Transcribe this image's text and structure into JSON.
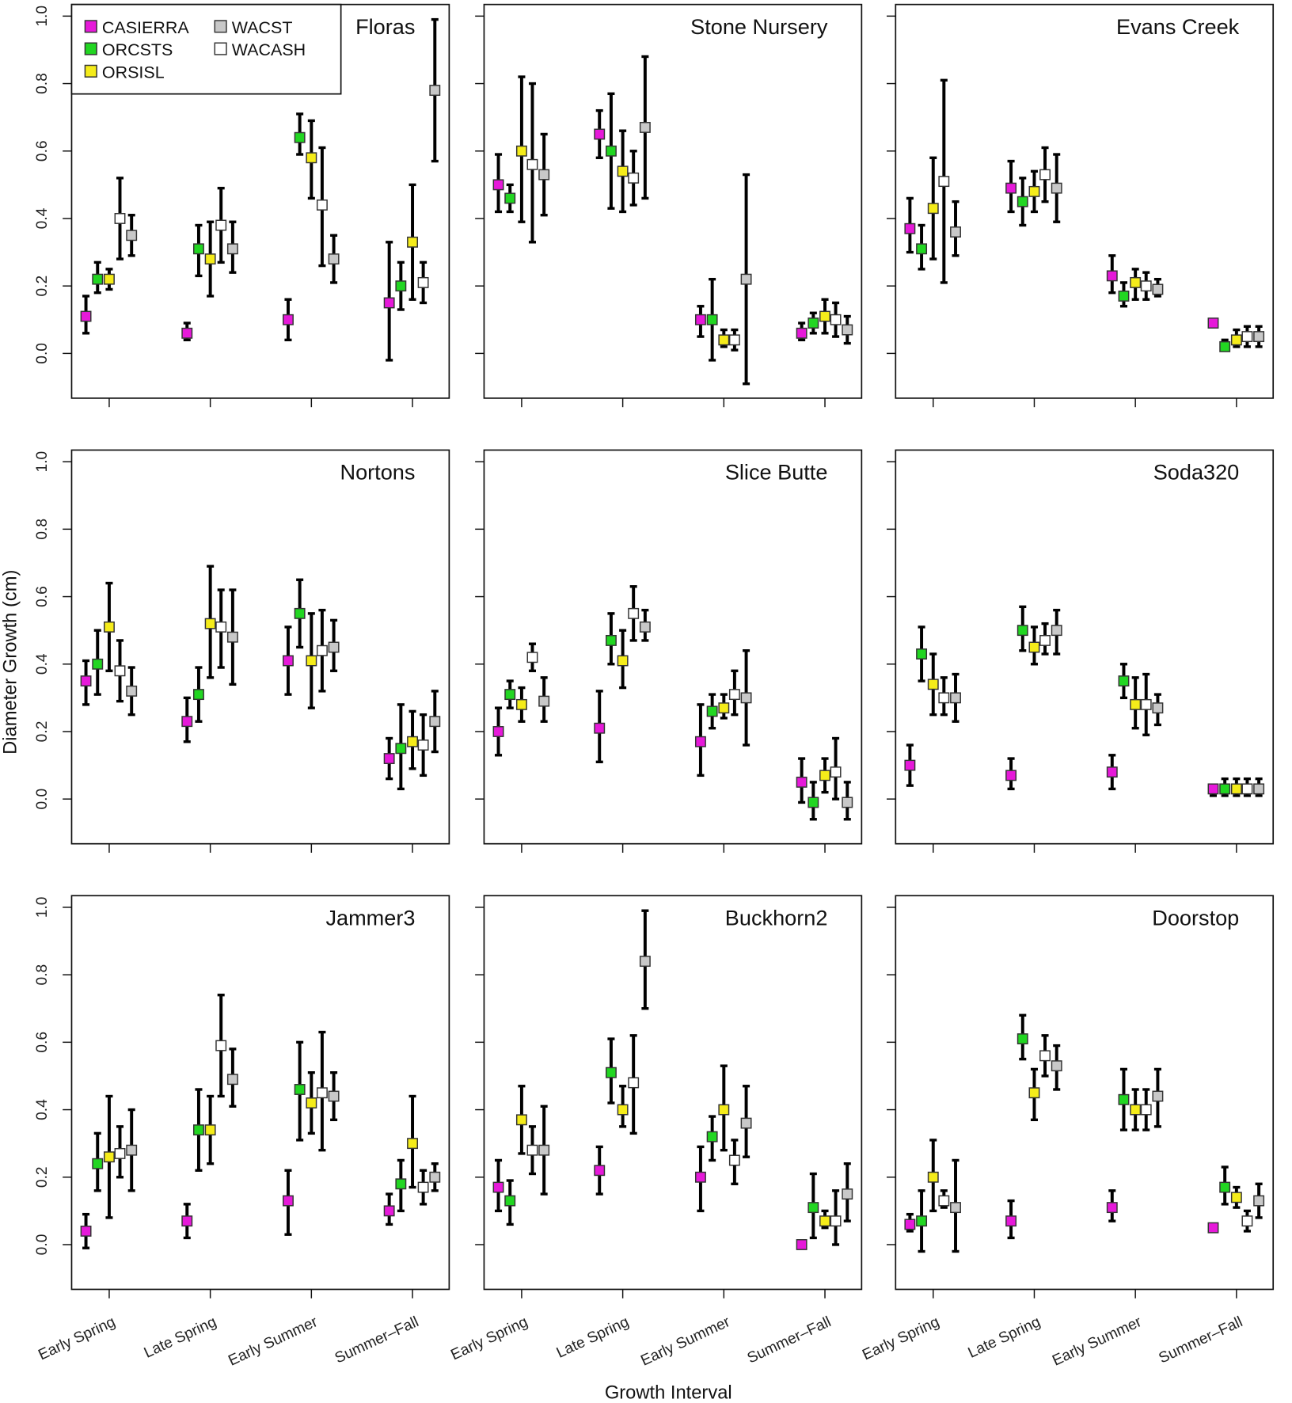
{
  "chart_data": {
    "type": "scatter",
    "subtype": "point-with-errorbars, 3x3 facets",
    "xlabel": "Growth Interval",
    "ylabel": "Diameter Growth (cm)",
    "ylim": [
      -0.1,
      1.05
    ],
    "yticks": [
      "0.0",
      "0.2",
      "0.4",
      "0.6",
      "0.8",
      "1.0"
    ],
    "ytick_values": [
      0,
      0.2,
      0.4,
      0.6,
      0.8,
      1.0
    ],
    "categories": [
      "Early Spring",
      "Late Spring",
      "Early Summer",
      "Summer–Fall"
    ],
    "legend": {
      "placement": "top-left of first panel",
      "entries": [
        {
          "name": "CASIERRA",
          "color": "#e619d9"
        },
        {
          "name": "ORCSTS",
          "color": "#22d622"
        },
        {
          "name": "ORSISL",
          "color": "#f5ec1a"
        },
        {
          "name": "WACASH",
          "color": "#ffffff"
        },
        {
          "name": "WACST",
          "color": "#c8c8c8"
        }
      ],
      "display_order": [
        "CASIERRA",
        "WACST",
        "ORCSTS",
        "WACASH",
        "ORSISL"
      ]
    },
    "series_order": [
      "CASIERRA",
      "ORCSTS",
      "ORSISL",
      "WACASH",
      "WACST"
    ],
    "value_format": "[mean, lower, upper] per category",
    "panels": [
      {
        "title": "Floras",
        "series": [
          [
            [
              0.11,
              0.06,
              0.17
            ],
            [
              0.06,
              0.04,
              0.09
            ],
            [
              0.1,
              0.04,
              0.16
            ],
            [
              0.15,
              -0.02,
              0.33
            ]
          ],
          [
            [
              0.22,
              0.18,
              0.27
            ],
            [
              0.31,
              0.23,
              0.38
            ],
            [
              0.64,
              0.59,
              0.71
            ],
            [
              0.2,
              0.13,
              0.27
            ]
          ],
          [
            [
              0.22,
              0.19,
              0.25
            ],
            [
              0.28,
              0.17,
              0.39
            ],
            [
              0.58,
              0.46,
              0.69
            ],
            [
              0.33,
              0.16,
              0.5
            ]
          ],
          [
            [
              0.4,
              0.28,
              0.52
            ],
            [
              0.38,
              0.27,
              0.49
            ],
            [
              0.44,
              0.26,
              0.61
            ],
            [
              0.21,
              0.15,
              0.27
            ]
          ],
          [
            [
              0.35,
              0.29,
              0.41
            ],
            [
              0.31,
              0.24,
              0.39
            ],
            [
              0.28,
              0.21,
              0.35
            ],
            [
              0.78,
              0.57,
              0.99
            ]
          ]
        ]
      },
      {
        "title": "Stone Nursery",
        "series": [
          [
            [
              0.5,
              0.42,
              0.59
            ],
            [
              0.65,
              0.58,
              0.72
            ],
            [
              0.1,
              0.05,
              0.14
            ],
            [
              0.06,
              0.04,
              0.09
            ]
          ],
          [
            [
              0.46,
              0.42,
              0.5
            ],
            [
              0.6,
              0.43,
              0.77
            ],
            [
              0.1,
              -0.02,
              0.22
            ],
            [
              0.09,
              0.06,
              0.12
            ]
          ],
          [
            [
              0.6,
              0.39,
              0.82
            ],
            [
              0.54,
              0.42,
              0.66
            ],
            [
              0.04,
              0.02,
              0.07
            ],
            [
              0.11,
              0.06,
              0.16
            ]
          ],
          [
            [
              0.56,
              0.33,
              0.8
            ],
            [
              0.52,
              0.44,
              0.6
            ],
            [
              0.04,
              0.01,
              0.07
            ],
            [
              0.1,
              0.05,
              0.15
            ]
          ],
          [
            [
              0.53,
              0.41,
              0.65
            ],
            [
              0.67,
              0.46,
              0.88
            ],
            [
              0.22,
              -0.09,
              0.53
            ],
            [
              0.07,
              0.03,
              0.11
            ]
          ]
        ]
      },
      {
        "title": "Evans Creek",
        "series": [
          [
            [
              0.37,
              0.3,
              0.46
            ],
            [
              0.49,
              0.42,
              0.57
            ],
            [
              0.23,
              0.18,
              0.29
            ],
            [
              0.09,
              0.08,
              0.1
            ]
          ],
          [
            [
              0.31,
              0.25,
              0.38
            ],
            [
              0.45,
              0.38,
              0.52
            ],
            [
              0.17,
              0.14,
              0.21
            ],
            [
              0.02,
              0.01,
              0.04
            ]
          ],
          [
            [
              0.43,
              0.28,
              0.58
            ],
            [
              0.48,
              0.42,
              0.54
            ],
            [
              0.21,
              0.16,
              0.25
            ],
            [
              0.04,
              0.02,
              0.07
            ]
          ],
          [
            [
              0.51,
              0.21,
              0.81
            ],
            [
              0.53,
              0.45,
              0.61
            ],
            [
              0.2,
              0.16,
              0.24
            ],
            [
              0.05,
              0.02,
              0.08
            ]
          ],
          [
            [
              0.36,
              0.29,
              0.45
            ],
            [
              0.49,
              0.39,
              0.59
            ],
            [
              0.19,
              0.17,
              0.22
            ],
            [
              0.05,
              0.02,
              0.08
            ]
          ]
        ]
      },
      {
        "title": "Nortons",
        "series": [
          [
            [
              0.35,
              0.28,
              0.41
            ],
            [
              0.23,
              0.17,
              0.3
            ],
            [
              0.41,
              0.31,
              0.51
            ],
            [
              0.12,
              0.06,
              0.18
            ]
          ],
          [
            [
              0.4,
              0.31,
              0.5
            ],
            [
              0.31,
              0.23,
              0.39
            ],
            [
              0.55,
              0.45,
              0.65
            ],
            [
              0.15,
              0.03,
              0.28
            ]
          ],
          [
            [
              0.51,
              0.38,
              0.64
            ],
            [
              0.52,
              0.36,
              0.69
            ],
            [
              0.41,
              0.27,
              0.55
            ],
            [
              0.17,
              0.09,
              0.26
            ]
          ],
          [
            [
              0.38,
              0.29,
              0.47
            ],
            [
              0.51,
              0.39,
              0.62
            ],
            [
              0.44,
              0.32,
              0.56
            ],
            [
              0.16,
              0.07,
              0.25
            ]
          ],
          [
            [
              0.32,
              0.25,
              0.39
            ],
            [
              0.48,
              0.34,
              0.62
            ],
            [
              0.45,
              0.38,
              0.53
            ],
            [
              0.23,
              0.14,
              0.32
            ]
          ]
        ]
      },
      {
        "title": "Slice Butte",
        "series": [
          [
            [
              0.2,
              0.13,
              0.27
            ],
            [
              0.21,
              0.11,
              0.32
            ],
            [
              0.17,
              0.07,
              0.28
            ],
            [
              0.05,
              -0.01,
              0.12
            ]
          ],
          [
            [
              0.31,
              0.27,
              0.35
            ],
            [
              0.47,
              0.4,
              0.55
            ],
            [
              0.26,
              0.21,
              0.31
            ],
            [
              -0.01,
              -0.06,
              0.05
            ]
          ],
          [
            [
              0.28,
              0.23,
              0.33
            ],
            [
              0.41,
              0.33,
              0.5
            ],
            [
              0.27,
              0.24,
              0.31
            ],
            [
              0.07,
              0.02,
              0.12
            ]
          ],
          [
            [
              0.42,
              0.38,
              0.46
            ],
            [
              0.55,
              0.47,
              0.63
            ],
            [
              0.31,
              0.25,
              0.38
            ],
            [
              0.08,
              0.0,
              0.18
            ]
          ],
          [
            [
              0.29,
              0.23,
              0.36
            ],
            [
              0.51,
              0.47,
              0.56
            ],
            [
              0.3,
              0.16,
              0.44
            ],
            [
              -0.01,
              -0.06,
              0.05
            ]
          ]
        ]
      },
      {
        "title": "Soda320",
        "series": [
          [
            [
              0.1,
              0.04,
              0.16
            ],
            [
              0.07,
              0.03,
              0.12
            ],
            [
              0.08,
              0.03,
              0.13
            ],
            [
              0.03,
              0.01,
              0.04
            ]
          ],
          [
            [
              0.43,
              0.35,
              0.51
            ],
            [
              0.5,
              0.44,
              0.57
            ],
            [
              0.35,
              0.3,
              0.4
            ],
            [
              0.03,
              0.01,
              0.06
            ]
          ],
          [
            [
              0.34,
              0.25,
              0.43
            ],
            [
              0.45,
              0.4,
              0.51
            ],
            [
              0.28,
              0.21,
              0.36
            ],
            [
              0.03,
              0.01,
              0.06
            ]
          ],
          [
            [
              0.3,
              0.25,
              0.36
            ],
            [
              0.47,
              0.43,
              0.52
            ],
            [
              0.28,
              0.19,
              0.37
            ],
            [
              0.03,
              0.01,
              0.06
            ]
          ],
          [
            [
              0.3,
              0.23,
              0.37
            ],
            [
              0.5,
              0.43,
              0.56
            ],
            [
              0.27,
              0.22,
              0.31
            ],
            [
              0.03,
              0.01,
              0.06
            ]
          ]
        ]
      },
      {
        "title": "Jammer3",
        "series": [
          [
            [
              0.04,
              -0.01,
              0.09
            ],
            [
              0.07,
              0.02,
              0.12
            ],
            [
              0.13,
              0.03,
              0.22
            ],
            [
              0.1,
              0.06,
              0.15
            ]
          ],
          [
            [
              0.24,
              0.16,
              0.33
            ],
            [
              0.34,
              0.22,
              0.46
            ],
            [
              0.46,
              0.31,
              0.6
            ],
            [
              0.18,
              0.1,
              0.25
            ]
          ],
          [
            [
              0.26,
              0.08,
              0.44
            ],
            [
              0.34,
              0.24,
              0.44
            ],
            [
              0.42,
              0.33,
              0.51
            ],
            [
              0.3,
              0.17,
              0.44
            ]
          ],
          [
            [
              0.27,
              0.2,
              0.35
            ],
            [
              0.59,
              0.44,
              0.74
            ],
            [
              0.45,
              0.28,
              0.63
            ],
            [
              0.17,
              0.12,
              0.22
            ]
          ],
          [
            [
              0.28,
              0.16,
              0.4
            ],
            [
              0.49,
              0.41,
              0.58
            ],
            [
              0.44,
              0.37,
              0.51
            ],
            [
              0.2,
              0.16,
              0.24
            ]
          ]
        ]
      },
      {
        "title": "Buckhorn2",
        "series": [
          [
            [
              0.17,
              0.1,
              0.25
            ],
            [
              0.22,
              0.15,
              0.29
            ],
            [
              0.2,
              0.1,
              0.29
            ],
            [
              0.0,
              0.0,
              0.01
            ]
          ],
          [
            [
              0.13,
              0.06,
              0.19
            ],
            [
              0.51,
              0.42,
              0.61
            ],
            [
              0.32,
              0.25,
              0.38
            ],
            [
              0.11,
              0.02,
              0.21
            ]
          ],
          [
            [
              0.37,
              0.27,
              0.47
            ],
            [
              0.4,
              0.35,
              0.47
            ],
            [
              0.4,
              0.28,
              0.53
            ],
            [
              0.07,
              0.05,
              0.1
            ]
          ],
          [
            [
              0.28,
              0.21,
              0.35
            ],
            [
              0.48,
              0.33,
              0.62
            ],
            [
              0.25,
              0.18,
              0.31
            ],
            [
              0.07,
              0.0,
              0.16
            ]
          ],
          [
            [
              0.28,
              0.15,
              0.41
            ],
            [
              0.84,
              0.7,
              0.99
            ],
            [
              0.36,
              0.26,
              0.47
            ],
            [
              0.15,
              0.07,
              0.24
            ]
          ]
        ]
      },
      {
        "title": "Doorstop",
        "series": [
          [
            [
              0.06,
              0.04,
              0.09
            ],
            [
              0.07,
              0.02,
              0.13
            ],
            [
              0.11,
              0.07,
              0.16
            ],
            [
              0.05,
              0.04,
              0.06
            ]
          ],
          [
            [
              0.07,
              -0.02,
              0.16
            ],
            [
              0.61,
              0.55,
              0.68
            ],
            [
              0.43,
              0.34,
              0.52
            ],
            [
              0.17,
              0.12,
              0.23
            ]
          ],
          [
            [
              0.2,
              0.1,
              0.31
            ],
            [
              0.45,
              0.37,
              0.52
            ],
            [
              0.4,
              0.34,
              0.46
            ],
            [
              0.14,
              0.11,
              0.17
            ]
          ],
          [
            [
              0.13,
              0.11,
              0.16
            ],
            [
              0.56,
              0.5,
              0.62
            ],
            [
              0.4,
              0.34,
              0.46
            ],
            [
              0.07,
              0.04,
              0.1
            ]
          ],
          [
            [
              0.11,
              -0.02,
              0.25
            ],
            [
              0.53,
              0.46,
              0.59
            ],
            [
              0.44,
              0.35,
              0.52
            ],
            [
              0.13,
              0.08,
              0.18
            ]
          ]
        ]
      }
    ]
  }
}
